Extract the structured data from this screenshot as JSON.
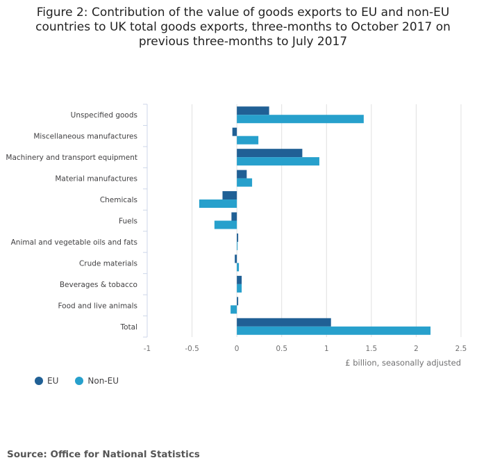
{
  "chart_data": {
    "type": "bar",
    "orientation": "horizontal",
    "title": "Figure 2: Contribution of the value of goods exports to EU and non-EU countries to UK total goods exports, three-months to October 2017 on previous three-months to July 2017",
    "xlabel": "£ billion, seasonally adjusted",
    "ylabel": "",
    "xlim": [
      -1,
      2.5
    ],
    "xticks": [
      "-1",
      "-0.5",
      "0",
      "0.5",
      "1",
      "1.5",
      "2",
      "2.5"
    ],
    "grid": true,
    "legend_position": "bottom-left",
    "categories": [
      "Unspecified goods",
      "Miscellaneous manufactures",
      "Machinery and transport equipment",
      "Material manufactures",
      "Chemicals",
      "Fuels",
      "Animal and vegetable oils and fats",
      "Crude materials",
      "Beverages & tobacco",
      "Food and live animals",
      "Total"
    ],
    "series": [
      {
        "name": "EU",
        "color": "#206095",
        "values": [
          0.36,
          -0.05,
          0.73,
          0.11,
          -0.16,
          -0.06,
          0.015,
          -0.023,
          0.054,
          0.015,
          1.05
        ]
      },
      {
        "name": "Non-EU",
        "color": "#27a0cc",
        "values": [
          1.415,
          0.24,
          0.92,
          0.17,
          -0.42,
          -0.25,
          0.008,
          0.023,
          0.054,
          -0.07,
          2.16
        ]
      }
    ]
  },
  "source": "Source: Office for National Statistics"
}
